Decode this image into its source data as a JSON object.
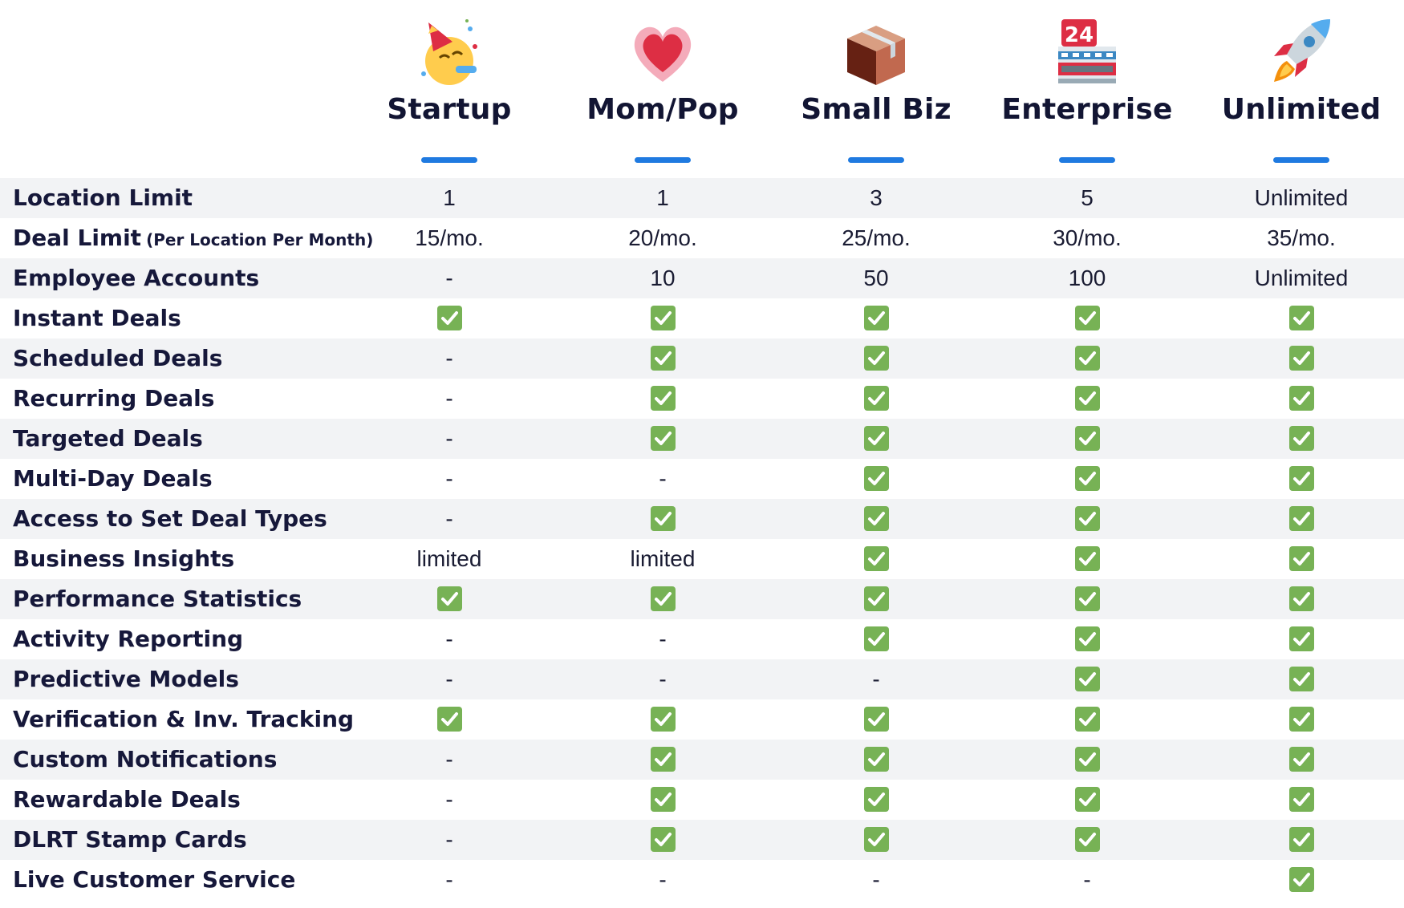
{
  "colors": {
    "accent": "#1f7ae0",
    "check": "#77b255",
    "row_shade": "#f2f3f5",
    "text": "#16183a"
  },
  "plans": [
    {
      "name": "Startup",
      "icon": "party-face-icon"
    },
    {
      "name": "Mom/Pop",
      "icon": "heart-icon"
    },
    {
      "name": "Small Biz",
      "icon": "package-icon"
    },
    {
      "name": "Enterprise",
      "icon": "convenience-store-icon"
    },
    {
      "name": "Unlimited",
      "icon": "rocket-icon"
    }
  ],
  "rows": [
    {
      "feature": "Location Limit",
      "values": [
        "1",
        "1",
        "3",
        "5",
        "Unlimited"
      ]
    },
    {
      "feature": "Deal Limit",
      "note": "(Per Location Per Month)",
      "values": [
        "15/mo.",
        "20/mo.",
        "25/mo.",
        "30/mo.",
        "35/mo."
      ]
    },
    {
      "feature": "Employee Accounts",
      "values": [
        "-",
        "10",
        "50",
        "100",
        "Unlimited"
      ]
    },
    {
      "feature": "Instant Deals",
      "values": [
        "check",
        "check",
        "check",
        "check",
        "check"
      ]
    },
    {
      "feature": "Scheduled Deals",
      "values": [
        "-",
        "check",
        "check",
        "check",
        "check"
      ]
    },
    {
      "feature": "Recurring Deals",
      "values": [
        "-",
        "check",
        "check",
        "check",
        "check"
      ]
    },
    {
      "feature": "Targeted Deals",
      "values": [
        "-",
        "check",
        "check",
        "check",
        "check"
      ]
    },
    {
      "feature": "Multi-Day Deals",
      "values": [
        "-",
        "-",
        "check",
        "check",
        "check"
      ]
    },
    {
      "feature": "Access to Set Deal Types",
      "values": [
        "-",
        "check",
        "check",
        "check",
        "check"
      ]
    },
    {
      "feature": "Business Insights",
      "values": [
        "limited",
        "limited",
        "check",
        "check",
        "check"
      ]
    },
    {
      "feature": "Performance Statistics",
      "values": [
        "check",
        "check",
        "check",
        "check",
        "check"
      ]
    },
    {
      "feature": "Activity Reporting",
      "values": [
        "-",
        "-",
        "check",
        "check",
        "check"
      ]
    },
    {
      "feature": "Predictive Models",
      "values": [
        "-",
        "-",
        "-",
        "check",
        "check"
      ]
    },
    {
      "feature": "Verification & Inv. Tracking",
      "values": [
        "check",
        "check",
        "check",
        "check",
        "check"
      ]
    },
    {
      "feature": "Custom Notifications",
      "values": [
        "-",
        "check",
        "check",
        "check",
        "check"
      ]
    },
    {
      "feature": "Rewardable Deals",
      "values": [
        "-",
        "check",
        "check",
        "check",
        "check"
      ]
    },
    {
      "feature": "DLRT Stamp Cards",
      "values": [
        "-",
        "check",
        "check",
        "check",
        "check"
      ]
    },
    {
      "feature": "Live Customer Service",
      "values": [
        "-",
        "-",
        "-",
        "-",
        "check"
      ]
    }
  ]
}
